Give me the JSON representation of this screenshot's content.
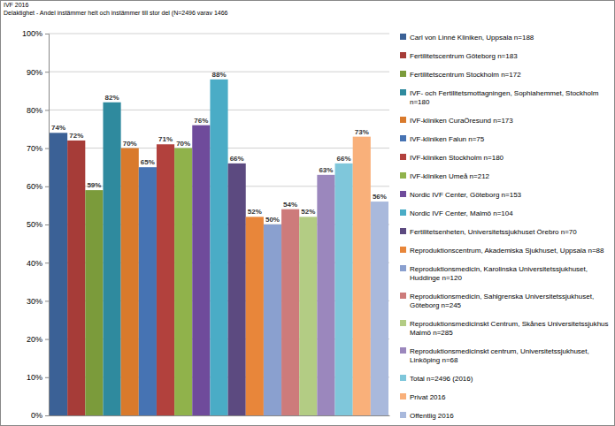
{
  "chart_data": {
    "type": "bar",
    "title": "IVF 2016",
    "subtitle": "Delaktighet - Andel instämmer helt och instämmer till stor del (N=2496 varav 1466",
    "categories": [
      "Carl von Linné Kliniken, Uppsala n=188",
      "Fertilitetscentrum Göteborg n=183",
      "Fertilitetscentrum Stockholm n=172",
      "IVF- och Fertilitetsmottagningen, Sophiahemmet, Stockholm n=180",
      "IVF-kliniken CuraÖresund n=173",
      "IVF-kliniken Falun n=75",
      "IVF-kliniken Stockholm n=180",
      "IVF-kliniken Umeå n=212",
      "Nordic IVF Center, Göteborg n=153",
      "Nordic IVF Center, Malmö n=104",
      "Fertilitetsenheten, Universitetssjukhuset Örebro n=70",
      "Reproduktionscentrum, Akademiska Sjukhuset, Uppsala n=88",
      "Reproduktionsmedicin, Karolinska Universitetssjukhuset, Huddinge n=120",
      "Reproduktionsmedicin, Sahlgrenska Universitetssjukhuset, Göteborg n=245",
      "Reproduktionsmedicinskt Centrum, Skånes Universitetssjukhus Malmö n=285",
      "Reproduktionsmedicinskt centrum, Universitetssjukhuset, Linköping n=68",
      "Total n=2496 (2016)",
      "Privat 2016",
      "Offentlig 2016"
    ],
    "values": [
      74,
      72,
      59,
      82,
      70,
      65,
      71,
      70,
      76,
      88,
      66,
      52,
      50,
      54,
      52,
      63,
      66,
      73,
      56
    ],
    "value_labels": [
      "74%",
      "72%",
      "59%",
      "82%",
      "70%",
      "65%",
      "71%",
      "70%",
      "76%",
      "88%",
      "66%",
      "52%",
      "50%",
      "54%",
      "52%",
      "63%",
      "66%",
      "73%",
      "56%"
    ],
    "colors": [
      "#3b6196",
      "#a63c38",
      "#7b9b3b",
      "#2f8a9e",
      "#d97a2c",
      "#4673b3",
      "#b2413d",
      "#90b24b",
      "#6f4b9b",
      "#4aacc6",
      "#5c4a80",
      "#e8863a",
      "#8aa0cf",
      "#cd7b7b",
      "#b3cc84",
      "#9b87bd",
      "#7fc7db",
      "#f9b07a",
      "#a9b9dc"
    ],
    "ylim": [
      0,
      100
    ],
    "yticks": [
      {
        "value": 0,
        "label": "0%"
      },
      {
        "value": 10,
        "label": "10%"
      },
      {
        "value": 20,
        "label": "20%"
      },
      {
        "value": 30,
        "label": "30%"
      },
      {
        "value": 40,
        "label": "40%"
      },
      {
        "value": 50,
        "label": "50%"
      },
      {
        "value": 60,
        "label": "60%"
      },
      {
        "value": 70,
        "label": "70%"
      },
      {
        "value": 80,
        "label": "80%"
      },
      {
        "value": 90,
        "label": "90%"
      },
      {
        "value": 100,
        "label": "100%"
      }
    ],
    "grid": true,
    "data_labels": true,
    "tick_labels": "y",
    "legend": "right"
  }
}
